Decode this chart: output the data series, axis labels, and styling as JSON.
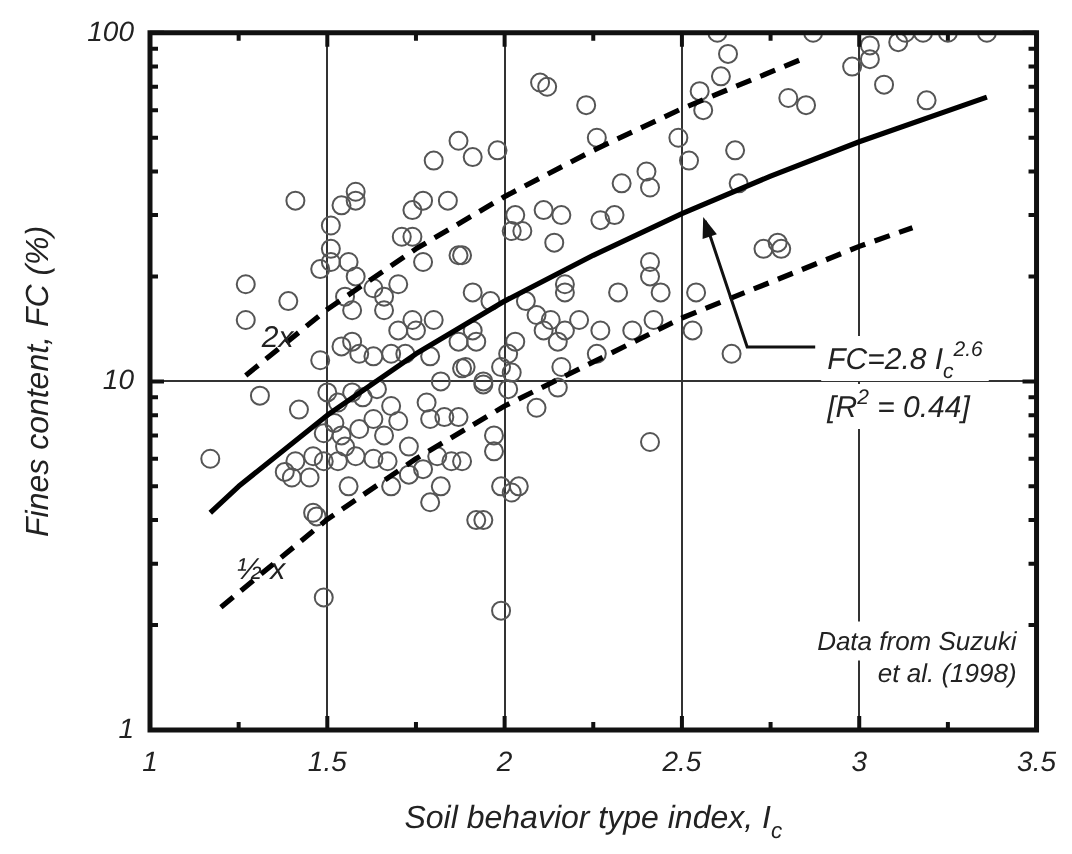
{
  "chart_data": {
    "type": "scatter",
    "xlabel": "Soil behavior type index, I$_{c}$",
    "ylabel": "Fines content, FC (%)",
    "log": "y",
    "grid": true,
    "legend": false,
    "xlim": [
      1,
      3.5
    ],
    "xticks": [
      1,
      {
        "value": 1.25,
        "label": null
      },
      1.5,
      {
        "value": 1.75,
        "label": null
      },
      2,
      {
        "value": 2.25,
        "label": null
      },
      2.5,
      {
        "value": 2.75,
        "label": null
      },
      3,
      {
        "value": 3.25,
        "label": null
      },
      3.5
    ],
    "ylim": [
      1,
      100
    ],
    "yticks": [
      1,
      {
        "value": 2,
        "label": null
      },
      {
        "value": 3,
        "label": null
      },
      {
        "value": 4,
        "label": null
      },
      {
        "value": 5,
        "label": null
      },
      {
        "value": 6,
        "label": null
      },
      {
        "value": 7,
        "label": null
      },
      {
        "value": 8,
        "label": null
      },
      {
        "value": 9,
        "label": null
      },
      10,
      {
        "value": 20,
        "label": null
      },
      {
        "value": 30,
        "label": null
      },
      {
        "value": 40,
        "label": null
      },
      {
        "value": 50,
        "label": null
      },
      {
        "value": 60,
        "label": null
      },
      {
        "value": 70,
        "label": null
      },
      {
        "value": 80,
        "label": null
      },
      {
        "value": 90,
        "label": null
      },
      100
    ],
    "annotations": [
      {
        "text": "FC=2.8 I$_{c}$$^{2.6}$",
        "x": 2.56,
        "y": 30
      },
      "[R$^{2}$ = 0.44]",
      "Data from Suzuki\net al. (1998)"
    ],
    "series": [
      {
        "type": "scatter",
        "marker": "circle",
        "color": "#555555",
        "x": [
          1.87,
          1.8,
          1.91,
          1.58,
          1.58,
          1.54,
          1.41,
          1.51,
          1.74,
          1.77,
          1.84,
          1.71,
          1.74,
          1.51,
          1.51,
          1.56,
          1.58,
          1.48,
          1.87,
          1.88,
          1.77,
          1.7,
          1.91,
          1.27,
          1.27,
          1.39,
          1.55,
          1.57,
          1.63,
          1.66,
          1.66,
          1.74,
          1.8,
          1.7,
          1.75,
          1.57,
          1.54,
          1.59,
          1.63,
          1.48,
          1.68,
          1.72,
          1.79,
          1.87,
          1.91,
          1.31,
          2.6,
          2.63,
          2.61,
          2.55,
          2.56,
          2.1,
          2.12,
          2.23,
          2.26,
          2.49,
          2.52,
          2.65,
          2.66,
          1.98,
          2.4,
          2.41,
          2.33,
          2.11,
          2.16,
          2.27,
          2.31,
          2.03,
          2.02,
          2.05,
          2.14,
          2.41,
          2.41,
          2.44,
          2.32,
          2.17,
          2.17,
          2.54,
          1.96,
          2.06,
          2.09,
          2.13,
          2.21,
          2.17,
          2.11,
          2.15,
          2.03,
          2.27,
          2.36,
          2.42,
          2.53,
          2.26,
          2.01,
          1.99,
          1.94,
          1.92,
          1.89,
          2.02,
          2.16,
          2.64,
          2.15,
          2.87,
          3.03,
          3.03,
          2.98,
          3.11,
          3.13,
          3.18,
          3.25,
          3.36,
          3.07,
          3.19,
          2.8,
          2.85,
          2.73,
          2.77,
          2.78,
          1.17,
          1.42,
          1.49,
          1.46,
          1.47,
          1.79,
          1.92,
          1.5,
          1.53,
          1.57,
          1.6,
          1.64,
          1.68,
          1.7,
          1.66,
          1.59,
          1.54,
          1.55,
          1.49,
          1.46,
          1.41,
          1.38,
          1.4,
          1.45,
          1.49,
          1.53,
          1.58,
          1.63,
          1.67,
          1.73,
          1.68,
          1.73,
          1.77,
          1.81,
          1.85,
          1.88,
          1.79,
          1.83,
          1.87,
          1.78,
          1.82,
          1.88,
          1.82,
          1.56,
          1.52,
          1.63,
          1.97,
          1.97,
          1.99,
          2.04,
          2.02,
          1.94,
          1.99,
          2.41,
          2.09,
          2.01,
          1.94
        ],
        "values": [
          49,
          43,
          44,
          35,
          33,
          32,
          33,
          28,
          31,
          33,
          33,
          26,
          26,
          24,
          22,
          22,
          20,
          21,
          23,
          23,
          22,
          19,
          18,
          19,
          15,
          17,
          17.5,
          16,
          18.5,
          17.5,
          16,
          15,
          15,
          14,
          14,
          13,
          12.6,
          12,
          11.8,
          11.5,
          12,
          12,
          11.8,
          13,
          14,
          9.1,
          100,
          87,
          75,
          68,
          60,
          72,
          70,
          62,
          50,
          50,
          43,
          46,
          37,
          46,
          40,
          36,
          37,
          31,
          30,
          29,
          30,
          30,
          27,
          27,
          25,
          22,
          20,
          18,
          18,
          19,
          18,
          18,
          17,
          17,
          15.5,
          15,
          15,
          14,
          14,
          13,
          13,
          14,
          14,
          15,
          14,
          12,
          12,
          11,
          9.8,
          13,
          11,
          10.6,
          11,
          12,
          9.6,
          100,
          92,
          84,
          80,
          94,
          100,
          100,
          100,
          100,
          71,
          64,
          65,
          62,
          24,
          25,
          24,
          6.0,
          8.3,
          2.4,
          4.2,
          4.1,
          4.5,
          4.0,
          9.3,
          8.7,
          9.3,
          9.0,
          9.5,
          8.5,
          7.7,
          7.0,
          7.3,
          7.0,
          6.5,
          7.1,
          6.1,
          5.9,
          5.5,
          5.3,
          5.3,
          5.9,
          5.9,
          6.1,
          6.0,
          5.9,
          6.5,
          5.0,
          5.4,
          5.6,
          6.1,
          5.9,
          5.9,
          7.8,
          7.9,
          7.9,
          8.7,
          10,
          10.9,
          5.0,
          5.0,
          7.6,
          7.8,
          7.0,
          6.3,
          5.0,
          5.0,
          4.8,
          4.0,
          2.2,
          6.7,
          8.4,
          9.5,
          10
        ]
      },
      {
        "type": "line",
        "marker": "none",
        "line_style": "solid",
        "color": "#000000",
        "x": [
          1.17,
          1.25,
          1.5,
          1.75,
          2,
          2.25,
          2.5,
          2.75,
          3,
          3.36
        ],
        "values": [
          4.2,
          5.0,
          8.0,
          12.0,
          17.0,
          23.0,
          30.3,
          38.8,
          48.7,
          65.4
        ]
      },
      {
        "type": "line",
        "name": "2x",
        "marker": "none",
        "line_style": "dashed",
        "color": "#000000",
        "x": [
          1.27,
          1.5,
          1.75,
          2,
          2.25,
          2.5,
          2.85
        ],
        "values": [
          10.4,
          16.1,
          24,
          33.9,
          46,
          60.6,
          85
        ]
      },
      {
        "type": "line",
        "name": "½ x",
        "marker": "none",
        "line_style": "dashed",
        "color": "#000000",
        "x": [
          1.2,
          1.5,
          1.75,
          2,
          2.5,
          3,
          3.15
        ],
        "values": [
          2.25,
          4.02,
          6.0,
          8.5,
          15.2,
          24.4,
          27.6
        ]
      }
    ]
  }
}
